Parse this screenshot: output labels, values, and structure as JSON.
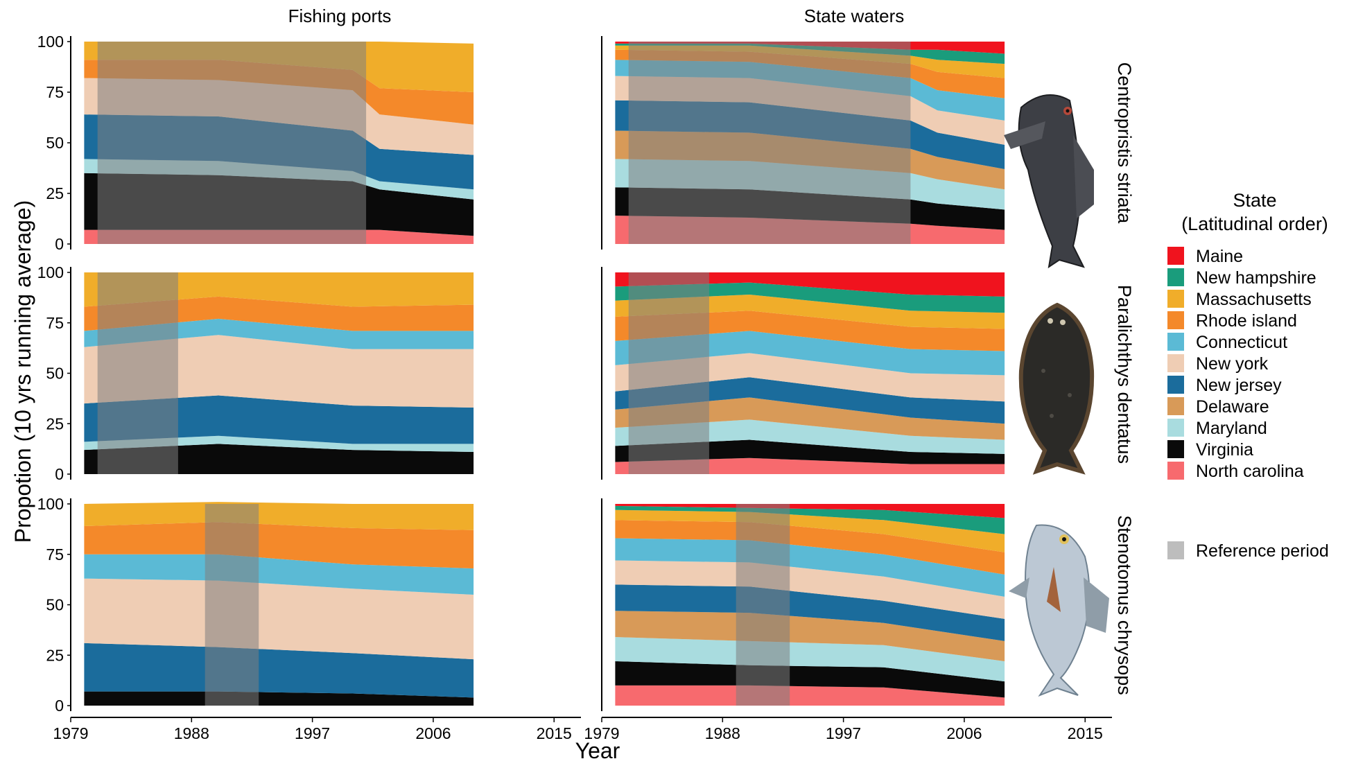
{
  "figure": {
    "type": "area",
    "stack": "fill",
    "column_titles": [
      "Fishing ports",
      "State waters"
    ],
    "row_titles": [
      "Centropristis striata",
      "Paralichthys dentatus",
      "Stenotomus chrysops"
    ],
    "xlabel": "Year",
    "ylabel": "Propotion (10 yrs running average)",
    "x_ticks": [
      1979,
      1988,
      1997,
      2006,
      2015
    ],
    "xlim": [
      1979,
      2017
    ],
    "y_ticks": [
      0,
      25,
      50,
      75,
      100
    ],
    "ylim": [
      0,
      100
    ],
    "legend": {
      "title_line1": "State",
      "title_line2": "(Latitudinal order)",
      "reference_label": "Reference period",
      "reference_color": "#bdbdbd",
      "placement": "right"
    },
    "states": [
      {
        "name": "Maine",
        "color": "#f0131e"
      },
      {
        "name": "New hampshire",
        "color": "#1a9c7c"
      },
      {
        "name": "Massachusetts",
        "color": "#f0ad2a"
      },
      {
        "name": "Rhode island",
        "color": "#f4892a"
      },
      {
        "name": "Connecticut",
        "color": "#5bbad5"
      },
      {
        "name": "New york",
        "color": "#efcdb4"
      },
      {
        "name": "New jersey",
        "color": "#1b6c9c"
      },
      {
        "name": "Delaware",
        "color": "#d89a58"
      },
      {
        "name": "Maryland",
        "color": "#a9dcdf"
      },
      {
        "name": "Virginia",
        "color": "#0a0a0a"
      },
      {
        "name": "North carolina",
        "color": "#f76a6e"
      }
    ],
    "species_images": [
      "black-sea-bass-image",
      "summer-flounder-image",
      "scup-image"
    ]
  },
  "chart_data": [
    {
      "type": "area",
      "row": "Centropristis striata",
      "column": "Fishing ports",
      "x": [
        1980,
        1990,
        2000,
        2002,
        2009
      ],
      "reference_period": [
        1981,
        2001
      ],
      "series": [
        {
          "name": "North carolina",
          "values": [
            7,
            7,
            7,
            7,
            4
          ]
        },
        {
          "name": "Virginia",
          "values": [
            28,
            27,
            24,
            20,
            18
          ]
        },
        {
          "name": "Maryland",
          "values": [
            7,
            7,
            5,
            4,
            5
          ]
        },
        {
          "name": "New jersey",
          "values": [
            22,
            22,
            20,
            16,
            17
          ]
        },
        {
          "name": "New york",
          "values": [
            18,
            18,
            20,
            17,
            15
          ]
        },
        {
          "name": "Rhode island",
          "values": [
            9,
            10,
            10,
            13,
            16
          ]
        },
        {
          "name": "Massachusetts",
          "values": [
            9,
            9,
            14,
            23,
            24
          ]
        }
      ]
    },
    {
      "type": "area",
      "row": "Centropristis striata",
      "column": "State waters",
      "x": [
        1980,
        1990,
        2002,
        2004,
        2009
      ],
      "reference_period": [
        1981,
        2002
      ],
      "series": [
        {
          "name": "North carolina",
          "values": [
            14,
            13,
            10,
            9,
            7
          ]
        },
        {
          "name": "Virginia",
          "values": [
            14,
            14,
            12,
            11,
            10
          ]
        },
        {
          "name": "Maryland",
          "values": [
            14,
            14,
            13,
            12,
            10
          ]
        },
        {
          "name": "Delaware",
          "values": [
            14,
            14,
            12,
            11,
            10
          ]
        },
        {
          "name": "New jersey",
          "values": [
            15,
            15,
            14,
            12,
            12
          ]
        },
        {
          "name": "New york",
          "values": [
            12,
            12,
            12,
            11,
            12
          ]
        },
        {
          "name": "Connecticut",
          "values": [
            8,
            8,
            9,
            10,
            11
          ]
        },
        {
          "name": "Rhode island",
          "values": [
            5,
            5,
            7,
            9,
            10
          ]
        },
        {
          "name": "Massachusetts",
          "values": [
            2,
            3,
            4,
            6,
            7
          ]
        },
        {
          "name": "New hampshire",
          "values": [
            1,
            1,
            3,
            5,
            5
          ]
        },
        {
          "name": "Maine",
          "values": [
            1,
            1,
            4,
            4,
            6
          ]
        }
      ]
    },
    {
      "type": "area",
      "row": "Paralichthys dentatus",
      "column": "Fishing ports",
      "x": [
        1980,
        1990,
        2000,
        2009
      ],
      "reference_period": [
        1981,
        1987
      ],
      "series": [
        {
          "name": "Virginia",
          "values": [
            12,
            15,
            12,
            11
          ]
        },
        {
          "name": "Maryland",
          "values": [
            4,
            4,
            3,
            4
          ]
        },
        {
          "name": "New jersey",
          "values": [
            19,
            20,
            19,
            18
          ]
        },
        {
          "name": "New york",
          "values": [
            28,
            30,
            28,
            29
          ]
        },
        {
          "name": "Connecticut",
          "values": [
            8,
            8,
            9,
            9
          ]
        },
        {
          "name": "Rhode island",
          "values": [
            12,
            11,
            12,
            13
          ]
        },
        {
          "name": "Massachusetts",
          "values": [
            17,
            12,
            17,
            16
          ]
        }
      ]
    },
    {
      "type": "area",
      "row": "Paralichthys dentatus",
      "column": "State waters",
      "x": [
        1980,
        1990,
        2002,
        2009
      ],
      "reference_period": [
        1981,
        1987
      ],
      "series": [
        {
          "name": "North carolina",
          "values": [
            6,
            8,
            5,
            5
          ]
        },
        {
          "name": "Virginia",
          "values": [
            8,
            9,
            6,
            5
          ]
        },
        {
          "name": "Maryland",
          "values": [
            9,
            10,
            8,
            7
          ]
        },
        {
          "name": "Delaware",
          "values": [
            9,
            11,
            9,
            8
          ]
        },
        {
          "name": "New jersey",
          "values": [
            9,
            10,
            10,
            11
          ]
        },
        {
          "name": "New york",
          "values": [
            13,
            12,
            12,
            13
          ]
        },
        {
          "name": "Connecticut",
          "values": [
            12,
            11,
            12,
            12
          ]
        },
        {
          "name": "Rhode island",
          "values": [
            12,
            10,
            11,
            11
          ]
        },
        {
          "name": "Massachusetts",
          "values": [
            8,
            8,
            8,
            8
          ]
        },
        {
          "name": "New hampshire",
          "values": [
            7,
            6,
            8,
            8
          ]
        },
        {
          "name": "Maine",
          "values": [
            7,
            5,
            11,
            12
          ]
        }
      ]
    },
    {
      "type": "area",
      "row": "Stenotomus chrysops",
      "column": "Fishing ports",
      "x": [
        1980,
        1990,
        2000,
        2009
      ],
      "reference_period": [
        1989,
        1993
      ],
      "series": [
        {
          "name": "Virginia",
          "values": [
            7,
            7,
            6,
            4
          ]
        },
        {
          "name": "New jersey",
          "values": [
            24,
            22,
            20,
            19
          ]
        },
        {
          "name": "New york",
          "values": [
            32,
            33,
            32,
            32
          ]
        },
        {
          "name": "Connecticut",
          "values": [
            12,
            13,
            12,
            13
          ]
        },
        {
          "name": "Rhode island",
          "values": [
            14,
            16,
            18,
            19
          ]
        },
        {
          "name": "Massachusetts",
          "values": [
            11,
            10,
            12,
            13
          ]
        }
      ]
    },
    {
      "type": "area",
      "row": "Stenotomus chrysops",
      "column": "State waters",
      "x": [
        1980,
        1990,
        2000,
        2009
      ],
      "reference_period": [
        1989,
        1993
      ],
      "series": [
        {
          "name": "North carolina",
          "values": [
            10,
            10,
            9,
            4
          ]
        },
        {
          "name": "Virginia",
          "values": [
            12,
            10,
            10,
            8
          ]
        },
        {
          "name": "Maryland",
          "values": [
            12,
            12,
            11,
            10
          ]
        },
        {
          "name": "Delaware",
          "values": [
            13,
            14,
            11,
            10
          ]
        },
        {
          "name": "New jersey",
          "values": [
            13,
            13,
            11,
            11
          ]
        },
        {
          "name": "New york",
          "values": [
            12,
            12,
            12,
            11
          ]
        },
        {
          "name": "Connecticut",
          "values": [
            11,
            11,
            11,
            11
          ]
        },
        {
          "name": "Rhode island",
          "values": [
            9,
            9,
            10,
            11
          ]
        },
        {
          "name": "Massachusetts",
          "values": [
            5,
            5,
            7,
            9
          ]
        },
        {
          "name": "New hampshire",
          "values": [
            2,
            2,
            5,
            8
          ]
        },
        {
          "name": "Maine",
          "values": [
            1,
            2,
            3,
            7
          ]
        }
      ]
    }
  ]
}
